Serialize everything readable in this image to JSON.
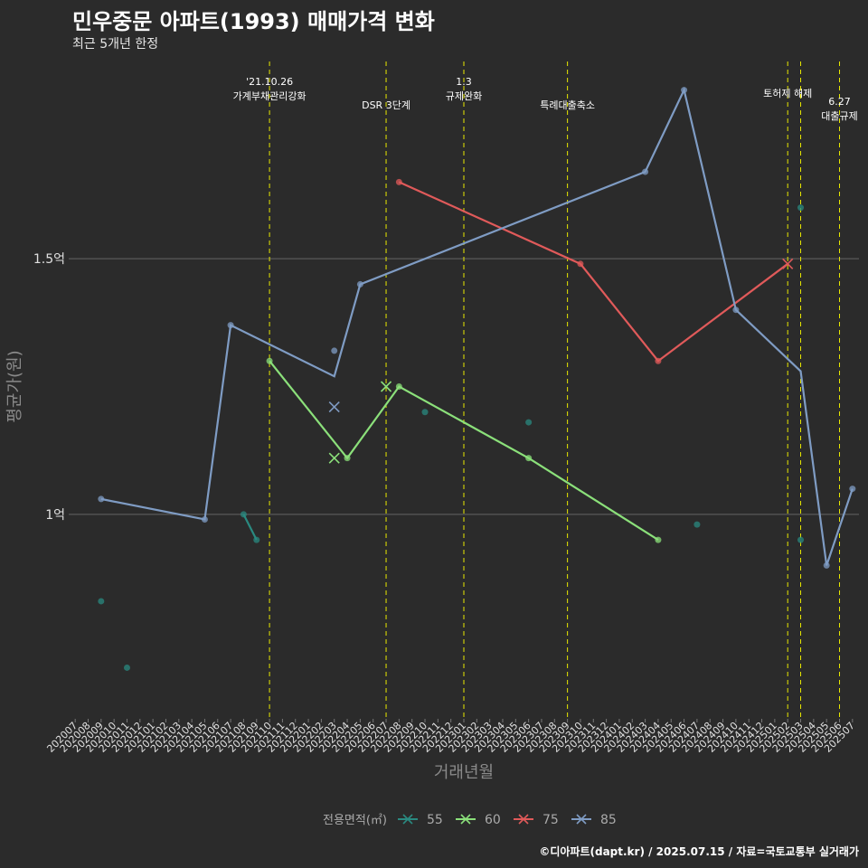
{
  "title": "민우중문 아파트(1993) 매매가격 변화",
  "subtitle": "최근 5개년 한정",
  "footer": "©디아파트(dapt.kr) / 2025.07.15 / 자료=국토교통부 실거래가",
  "chart_data": {
    "type": "line",
    "xlabel": "거래년월",
    "ylabel": "평균가(원)",
    "ylim": [
      0.6,
      1.9
    ],
    "yticks": [
      {
        "value": 1.0,
        "label": "1억"
      },
      {
        "value": 1.5,
        "label": "1.5억"
      }
    ],
    "grid": true,
    "legend_position": "bottom",
    "legend_title": "전용면적(㎡)",
    "x": [
      "202007",
      "202008",
      "202009",
      "202010",
      "202011",
      "202012",
      "202101",
      "202102",
      "202103",
      "202104",
      "202105",
      "202106",
      "202107",
      "202108",
      "202109",
      "202110",
      "202111",
      "202112",
      "202201",
      "202202",
      "202203",
      "202204",
      "202205",
      "202206",
      "202207",
      "202208",
      "202209",
      "202210",
      "202211",
      "202212",
      "202301",
      "202302",
      "202303",
      "202304",
      "202305",
      "202306",
      "202307",
      "202308",
      "202309",
      "202310",
      "202311",
      "202312",
      "202401",
      "202402",
      "202403",
      "202404",
      "202405",
      "202406",
      "202407",
      "202408",
      "202409",
      "202410",
      "202411",
      "202412",
      "202501",
      "202502",
      "202503",
      "202504",
      "202505",
      "202506",
      "202507"
    ],
    "events": [
      {
        "x": "202110",
        "lines": [
          "'21.10.26",
          "가계부채관리강화"
        ],
        "row": 0
      },
      {
        "x": "202207",
        "lines": [
          "DSR 3단계"
        ],
        "row": 2
      },
      {
        "x": "202301",
        "lines": [
          "1.3",
          "규제완화"
        ],
        "row": 0
      },
      {
        "x": "202309",
        "lines": [
          "특례대출축소"
        ],
        "row": 2
      },
      {
        "x": "202502",
        "lines": [
          "토허제 해제"
        ],
        "row": 1
      },
      {
        "x": "202503",
        "lines": [],
        "row": 1
      },
      {
        "x": "202506",
        "lines": [
          "6.27",
          "대출규제"
        ],
        "row": 1.7
      }
    ],
    "series": [
      {
        "name": "55",
        "color": "#2a8a80",
        "line": [
          {
            "x": "202108",
            "y": 1.0
          },
          {
            "x": "202109",
            "y": 0.95
          }
        ],
        "points": [
          {
            "x": "202009",
            "y": 0.83
          },
          {
            "x": "202011",
            "y": 0.7
          },
          {
            "x": "202108",
            "y": 1.0
          },
          {
            "x": "202109",
            "y": 0.95
          },
          {
            "x": "202210",
            "y": 1.2
          },
          {
            "x": "202306",
            "y": 1.18
          },
          {
            "x": "202407",
            "y": 0.98
          },
          {
            "x": "202503",
            "y": 1.6
          },
          {
            "x": "202503",
            "y": 0.95
          }
        ],
        "crosses": []
      },
      {
        "name": "60",
        "color": "#8be07a",
        "line": [
          {
            "x": "202110",
            "y": 1.3
          },
          {
            "x": "202204",
            "y": 1.11
          },
          {
            "x": "202208",
            "y": 1.25
          },
          {
            "x": "202306",
            "y": 1.11
          },
          {
            "x": "202404",
            "y": 0.95
          }
        ],
        "points": [
          {
            "x": "202110",
            "y": 1.3
          },
          {
            "x": "202204",
            "y": 1.11
          },
          {
            "x": "202208",
            "y": 1.25
          },
          {
            "x": "202306",
            "y": 1.11
          },
          {
            "x": "202404",
            "y": 0.95
          }
        ],
        "crosses": [
          {
            "x": "202203",
            "y": 1.11
          },
          {
            "x": "202207",
            "y": 1.25
          }
        ]
      },
      {
        "name": "75",
        "color": "#e05a5a",
        "line": [
          {
            "x": "202208",
            "y": 1.65
          },
          {
            "x": "202310",
            "y": 1.49
          },
          {
            "x": "202404",
            "y": 1.3
          },
          {
            "x": "202502",
            "y": 1.49
          }
        ],
        "points": [
          {
            "x": "202208",
            "y": 1.65
          },
          {
            "x": "202310",
            "y": 1.49
          },
          {
            "x": "202404",
            "y": 1.3
          }
        ],
        "crosses": [
          {
            "x": "202502",
            "y": 1.49
          }
        ]
      },
      {
        "name": "85",
        "color": "#7f9cc4",
        "line": [
          {
            "x": "202009",
            "y": 1.03
          },
          {
            "x": "202105",
            "y": 0.99
          },
          {
            "x": "202107",
            "y": 1.37
          },
          {
            "x": "202203",
            "y": 1.27
          },
          {
            "x": "202205",
            "y": 1.45
          },
          {
            "x": "202403",
            "y": 1.67
          },
          {
            "x": "202406",
            "y": 1.83
          },
          {
            "x": "202410",
            "y": 1.4
          },
          {
            "x": "202503",
            "y": 1.28
          },
          {
            "x": "202505",
            "y": 0.9
          },
          {
            "x": "202507",
            "y": 1.05
          }
        ],
        "points": [
          {
            "x": "202009",
            "y": 1.03
          },
          {
            "x": "202105",
            "y": 0.99
          },
          {
            "x": "202107",
            "y": 1.37
          },
          {
            "x": "202203",
            "y": 1.32
          },
          {
            "x": "202205",
            "y": 1.45
          },
          {
            "x": "202403",
            "y": 1.67
          },
          {
            "x": "202406",
            "y": 1.83
          },
          {
            "x": "202410",
            "y": 1.4
          },
          {
            "x": "202505",
            "y": 0.9
          },
          {
            "x": "202507",
            "y": 1.05
          }
        ],
        "crosses": [
          {
            "x": "202203",
            "y": 1.21
          }
        ]
      }
    ]
  }
}
